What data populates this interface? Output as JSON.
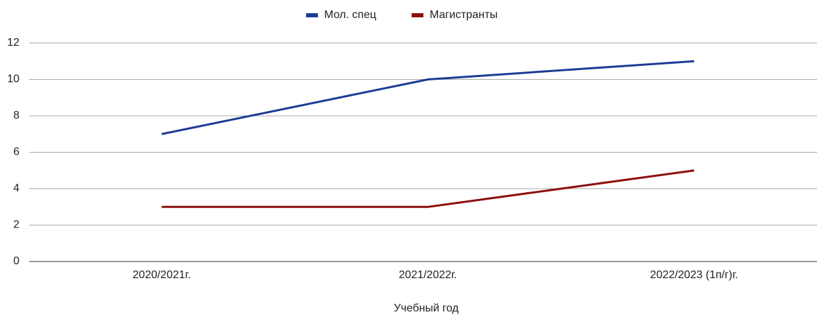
{
  "chart_data": {
    "type": "line",
    "x_label": "Учебный год",
    "categories": [
      "2020/2021г.",
      "2021/2022г.",
      "2022/2023 (1п/г)г."
    ],
    "series": [
      {
        "name": "Мол. спец",
        "color": "#1c3d96",
        "values": [
          7,
          10,
          11
        ]
      },
      {
        "name": "Магистранты",
        "color": "#8e0f0f",
        "values": [
          3,
          3,
          5
        ]
      }
    ],
    "ylim": [
      0,
      12
    ],
    "yticks": [
      0,
      2,
      4,
      6,
      8,
      10,
      12
    ],
    "grid": true,
    "legend": "top"
  }
}
